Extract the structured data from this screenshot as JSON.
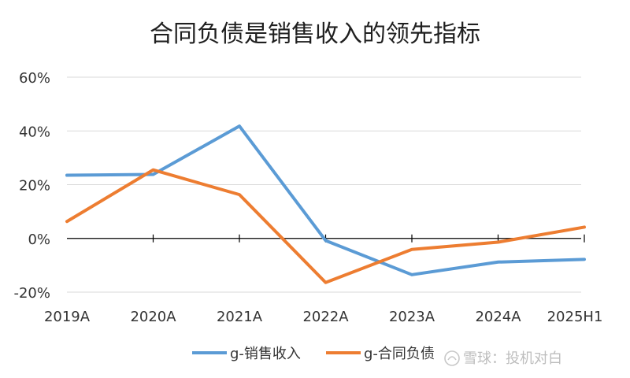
{
  "chart_data": {
    "type": "line",
    "title": "合同负债是销售收入的领先指标",
    "categories": [
      "2019A",
      "2020A",
      "2021A",
      "2022A",
      "2023A",
      "2024A",
      "2025H1"
    ],
    "series": [
      {
        "name": "g-销售收入",
        "color": "#5B9BD5",
        "values": [
          23.5,
          23.8,
          41.8,
          -0.8,
          -13.5,
          -8.8,
          -7.8
        ]
      },
      {
        "name": "g-合同负债",
        "color": "#ED7D31",
        "values": [
          6.3,
          25.5,
          16.3,
          -16.4,
          -4.1,
          -1.4,
          4.2
        ]
      }
    ],
    "xlabel": "",
    "ylabel": "",
    "ylim": [
      -20,
      60
    ],
    "yticks": [
      60,
      40,
      20,
      0,
      -20
    ],
    "ytick_labels": [
      "60%",
      "40%",
      "20%",
      "0%",
      "-20%"
    ],
    "grid": true,
    "legend": "bottom-center"
  },
  "watermark": "雪球：投机对白",
  "watermark_icon": "snowball-logo-icon"
}
